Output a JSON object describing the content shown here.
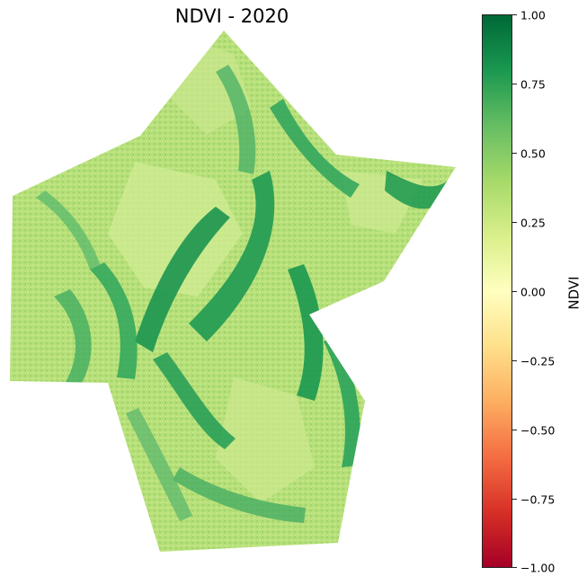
{
  "title": "NDVI - 2020",
  "colorbar": {
    "label": "NDVI",
    "min": -1.0,
    "max": 1.0,
    "ticks": [
      "1.00",
      "0.75",
      "0.50",
      "0.25",
      "0.00",
      "−0.25",
      "−0.50",
      "−0.75",
      "−1.00"
    ],
    "colormap": "RdYlGn",
    "colors": [
      "#006837",
      "#1a9850",
      "#66bd63",
      "#a6d96a",
      "#d9ef8b",
      "#ffffbf",
      "#fee08b",
      "#fdae61",
      "#f46d43",
      "#d73027",
      "#a50026"
    ]
  },
  "map": {
    "dominant_colors": {
      "high_vegetation": "#1a9850",
      "moderate_vegetation": "#a6d96a",
      "low_vegetation": "#d9ef8b"
    }
  }
}
